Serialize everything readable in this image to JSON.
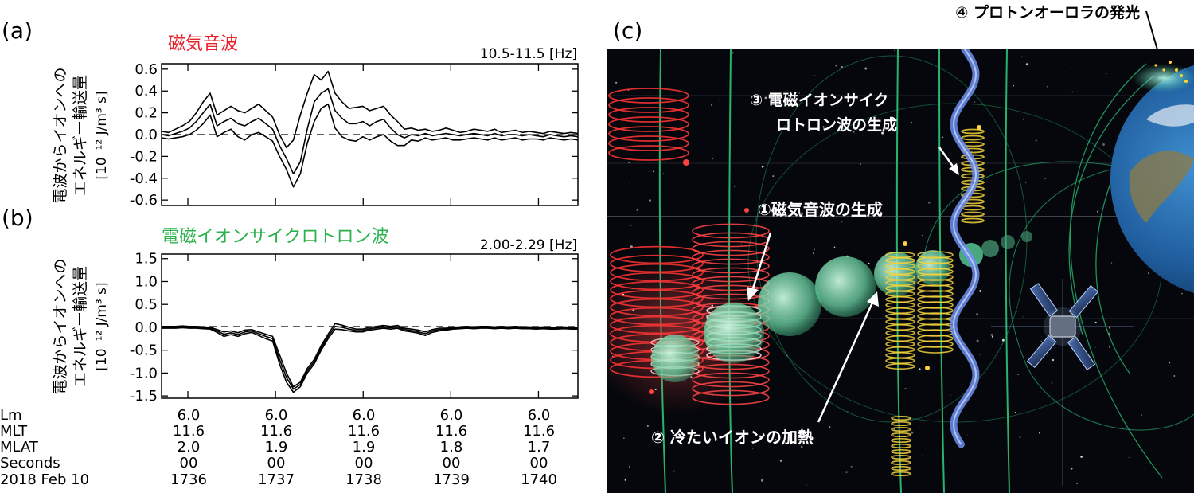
{
  "panel_a": {
    "label": "(a)",
    "title": "磁気音波",
    "freq": "10.5-11.5 [Hz]",
    "ylabel_line1": "電波からイオンへの",
    "ylabel_line2": "エネルギー輸送量",
    "ylabel_unit": "[10⁻¹² J/m³ s]",
    "title_color": "#e8202a",
    "chart_data": {
      "type": "line",
      "ylim": [
        -0.65,
        0.65
      ],
      "yticks": [
        "0.6",
        "0.4",
        "0.2",
        "0.0",
        "-0.2",
        "-0.4",
        "-0.6"
      ],
      "x": [
        0,
        1,
        2,
        3,
        4,
        5,
        6,
        7,
        8,
        9,
        10,
        11,
        12,
        13,
        14,
        15,
        16,
        17,
        18,
        19,
        20,
        21,
        22,
        23,
        24,
        25,
        26,
        27,
        28,
        29,
        30,
        31,
        32,
        33,
        34,
        35,
        36,
        37,
        38,
        39,
        40,
        41,
        42,
        43,
        44,
        45,
        46,
        47,
        48,
        49,
        50,
        51,
        52,
        53,
        54,
        55,
        56,
        57,
        58,
        59,
        60
      ],
      "series": [
        {
          "values": [
            0.03,
            0.02,
            0.05,
            0.08,
            0.12,
            0.2,
            0.3,
            0.38,
            0.18,
            0.22,
            0.26,
            0.22,
            0.2,
            0.24,
            0.28,
            0.22,
            0.16,
            0.0,
            -0.12,
            -0.05,
            0.18,
            0.38,
            0.55,
            0.5,
            0.58,
            0.38,
            0.3,
            0.24,
            0.25,
            0.26,
            0.22,
            0.24,
            0.26,
            0.18,
            0.12,
            0.05,
            0.06,
            0.04,
            0.05,
            0.03,
            0.04,
            0.06,
            0.04,
            0.02,
            0.03,
            0.05,
            0.04,
            0.03,
            0.05,
            0.02,
            0.03,
            0.04,
            0.02,
            0.03,
            0.02,
            0.01,
            0.03,
            0.02,
            0.01,
            0.02,
            0.01
          ]
        },
        {
          "values": [
            0.0,
            -0.01,
            0.01,
            0.03,
            0.06,
            0.12,
            0.2,
            0.28,
            0.08,
            0.12,
            0.15,
            0.1,
            0.08,
            0.12,
            0.15,
            0.1,
            0.05,
            -0.1,
            -0.22,
            -0.36,
            -0.25,
            0.05,
            0.3,
            0.38,
            0.42,
            0.22,
            0.15,
            0.1,
            0.1,
            0.12,
            0.08,
            0.12,
            0.14,
            0.06,
            0.0,
            -0.03,
            0.0,
            -0.01,
            0.01,
            -0.01,
            0.0,
            0.01,
            0.0,
            -0.01,
            0.0,
            0.01,
            0.0,
            -0.01,
            0.01,
            -0.01,
            0.0,
            0.0,
            -0.01,
            0.0,
            -0.01,
            -0.02,
            0.0,
            -0.01,
            -0.02,
            -0.01,
            -0.02
          ]
        },
        {
          "values": [
            -0.03,
            -0.04,
            -0.03,
            -0.02,
            0.0,
            0.04,
            0.1,
            0.18,
            -0.02,
            0.02,
            0.05,
            -0.02,
            -0.05,
            0.0,
            0.02,
            -0.02,
            -0.06,
            -0.2,
            -0.32,
            -0.48,
            -0.36,
            -0.08,
            0.12,
            0.24,
            0.28,
            0.06,
            -0.02,
            -0.05,
            -0.06,
            -0.02,
            -0.05,
            -0.02,
            0.0,
            -0.06,
            -0.1,
            -0.1,
            -0.05,
            -0.06,
            -0.03,
            -0.05,
            -0.04,
            -0.03,
            -0.05,
            -0.05,
            -0.04,
            -0.03,
            -0.04,
            -0.05,
            -0.03,
            -0.05,
            -0.04,
            -0.03,
            -0.05,
            -0.04,
            -0.04,
            -0.05,
            -0.03,
            -0.04,
            -0.05,
            -0.04,
            -0.05
          ]
        }
      ]
    }
  },
  "panel_b": {
    "label": "(b)",
    "title": "電磁イオンサイクロトロン波",
    "freq": "2.00-2.29 [Hz]",
    "ylabel_line1": "電波からイオンへの",
    "ylabel_line2": "エネルギー輸送量",
    "ylabel_unit": "[10⁻¹² J/m³ s]",
    "title_color": "#2bb24c",
    "chart_data": {
      "type": "line",
      "ylim": [
        -1.55,
        1.6
      ],
      "yticks": [
        "1.5",
        "1.0",
        "0.5",
        "0.0",
        "-0.5",
        "-1.0",
        "-1.5"
      ],
      "x": [
        0,
        1,
        2,
        3,
        4,
        5,
        6,
        7,
        8,
        9,
        10,
        11,
        12,
        13,
        14,
        15,
        16,
        17,
        18,
        19,
        20,
        21,
        22,
        23,
        24,
        25,
        26,
        27,
        28,
        29,
        30,
        31,
        32,
        33,
        34,
        35,
        36,
        37,
        38,
        39,
        40,
        41,
        42,
        43,
        44,
        45,
        46,
        47,
        48,
        49,
        50,
        51,
        52,
        53,
        54,
        55,
        56,
        57,
        58,
        59,
        60
      ],
      "series": [
        {
          "values": [
            0.02,
            0.02,
            0.02,
            0.03,
            0.02,
            0.02,
            0.01,
            0.0,
            -0.05,
            -0.1,
            -0.08,
            -0.12,
            -0.06,
            -0.05,
            -0.1,
            -0.15,
            -0.2,
            -0.6,
            -1.0,
            -1.3,
            -1.2,
            -0.9,
            -0.7,
            -0.4,
            -0.15,
            0.08,
            0.05,
            0.0,
            -0.04,
            -0.04,
            0.0,
            0.02,
            0.04,
            0.02,
            0.04,
            -0.02,
            -0.04,
            -0.06,
            -0.1,
            -0.05,
            -0.02,
            -0.02,
            0.0,
            0.01,
            0.02,
            0.01,
            0.02,
            0.02,
            0.01,
            0.02,
            0.01,
            0.02,
            0.01,
            0.01,
            0.0,
            0.01,
            0.0,
            0.0,
            0.01,
            0.0,
            0.0
          ]
        },
        {
          "values": [
            0.0,
            0.0,
            0.0,
            0.01,
            0.0,
            0.0,
            -0.01,
            -0.02,
            -0.08,
            -0.15,
            -0.12,
            -0.16,
            -0.1,
            -0.08,
            -0.14,
            -0.2,
            -0.25,
            -0.7,
            -1.1,
            -1.35,
            -1.25,
            -0.95,
            -0.75,
            -0.45,
            -0.2,
            0.02,
            0.0,
            -0.04,
            -0.07,
            -0.07,
            -0.03,
            -0.01,
            0.01,
            -0.01,
            0.01,
            -0.05,
            -0.07,
            -0.1,
            -0.14,
            -0.08,
            -0.05,
            -0.04,
            -0.02,
            -0.01,
            0.0,
            -0.01,
            0.0,
            0.0,
            -0.01,
            0.0,
            -0.01,
            0.0,
            -0.01,
            -0.01,
            -0.02,
            -0.01,
            -0.02,
            -0.02,
            -0.01,
            -0.02,
            -0.02
          ]
        },
        {
          "values": [
            -0.02,
            -0.02,
            -0.02,
            -0.01,
            -0.02,
            -0.02,
            -0.03,
            -0.04,
            -0.11,
            -0.2,
            -0.16,
            -0.2,
            -0.14,
            -0.11,
            -0.18,
            -0.25,
            -0.3,
            -0.8,
            -1.2,
            -1.42,
            -1.3,
            -1.0,
            -0.8,
            -0.5,
            -0.25,
            -0.04,
            -0.05,
            -0.08,
            -0.1,
            -0.1,
            -0.06,
            -0.04,
            -0.02,
            -0.04,
            -0.02,
            -0.08,
            -0.1,
            -0.13,
            -0.18,
            -0.11,
            -0.08,
            -0.06,
            -0.04,
            -0.03,
            -0.02,
            -0.03,
            -0.02,
            -0.02,
            -0.03,
            -0.02,
            -0.03,
            -0.02,
            -0.03,
            -0.03,
            -0.04,
            -0.03,
            -0.04,
            -0.04,
            -0.03,
            -0.04,
            -0.04
          ]
        }
      ]
    }
  },
  "axis_table": {
    "row_labels": [
      "Lm",
      "MLT",
      "MLAT",
      "Seconds",
      "2018 Feb 10"
    ],
    "columns": [
      {
        "Lm": "6.0",
        "MLT": "11.6",
        "MLAT": "2.0",
        "Seconds": "00",
        "time": "1736"
      },
      {
        "Lm": "6.0",
        "MLT": "11.6",
        "MLAT": "1.9",
        "Seconds": "00",
        "time": "1737"
      },
      {
        "Lm": "6.0",
        "MLT": "11.6",
        "MLAT": "1.9",
        "Seconds": "00",
        "time": "1738"
      },
      {
        "Lm": "6.0",
        "MLT": "11.6",
        "MLAT": "1.8",
        "Seconds": "00",
        "time": "1739"
      },
      {
        "Lm": "6.0",
        "MLT": "11.6",
        "MLAT": "1.7",
        "Seconds": "00",
        "time": "1740"
      }
    ]
  },
  "panel_c": {
    "label": "(c)",
    "callout_1": "①磁気音波の生成",
    "callout_2": "② 冷たいイオンの加熱",
    "callout_3_line1": "③ 電磁イオンサイク",
    "callout_3_line2": "ロトロン波の生成",
    "callout_4": "④ プロトンオーロラの発光",
    "colors": {
      "space": "#06070c",
      "field_lines": "#28b46e",
      "red_waves": "#ff3030",
      "cold_ions": "#8fe0b8",
      "emic": "#f2d23c",
      "blue_wave": "#6d8ff0"
    }
  }
}
